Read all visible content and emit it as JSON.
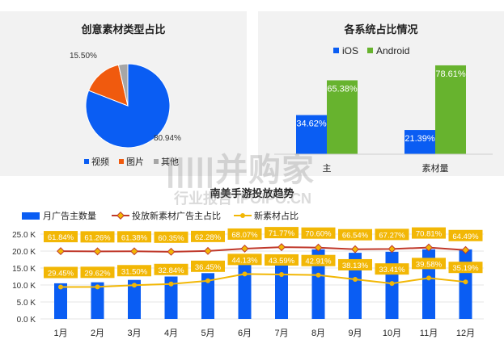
{
  "colors": {
    "blue": "#0a5df3",
    "orange": "#f05a0e",
    "gray": "#a6a6a6",
    "green": "#67b32e",
    "darkred": "#c0392b",
    "gold": "#f2b705"
  },
  "watermark": {
    "main": "|||||并购家",
    "sub": "行业报告 IPOIPO.CN"
  },
  "chart_data": [
    {
      "type": "pie",
      "title": "创意素材类型占比",
      "slices": [
        {
          "name": "视频",
          "value": 80.94,
          "label": "80.94%"
        },
        {
          "name": "图片",
          "value": 15.5,
          "label": "15.50%"
        },
        {
          "name": "其他",
          "value": 3.56,
          "label": ""
        }
      ],
      "legend": [
        "视频",
        "图片",
        "其他"
      ],
      "legend_position": "bottom"
    },
    {
      "type": "bar",
      "title": "各系统占比情况",
      "categories": [
        "广告主",
        "素材量"
      ],
      "category_labels": [
        "主",
        "素材量"
      ],
      "series": [
        {
          "name": "iOS",
          "values": [
            34.62,
            21.39
          ],
          "labels": [
            "34.62%",
            "21.39%"
          ]
        },
        {
          "name": "Android",
          "values": [
            65.38,
            78.61
          ],
          "labels": [
            "65.38%",
            "78.61%"
          ]
        }
      ],
      "legend_position": "top-left",
      "ylim": [
        0,
        100
      ]
    },
    {
      "type": "bar",
      "title": "南美手游投放趋势",
      "categories": [
        "1月",
        "2月",
        "3月",
        "4月",
        "5月",
        "6月",
        "7月",
        "8月",
        "9月",
        "10月",
        "11月",
        "12月"
      ],
      "ylim": [
        0,
        25000
      ],
      "yticks": [
        "0.0 K",
        "5.0 K",
        "10.0 K",
        "15.0 K",
        "20.0 K",
        "25.0 K"
      ],
      "series": [
        {
          "name": "月广告主数量",
          "kind": "bar",
          "values": [
            10500,
            10800,
            11500,
            12500,
            13500,
            16500,
            18000,
            20500,
            19500,
            19800,
            20500,
            20500
          ]
        },
        {
          "name": "投放新素材广告主占比",
          "kind": "line",
          "values": [
            61.84,
            61.26,
            61.38,
            60.35,
            62.28,
            68.07,
            71.77,
            70.6,
            66.54,
            67.27,
            70.81,
            64.49
          ],
          "labels": [
            "61.84%",
            "61.26%",
            "61.38%",
            "60.35%",
            "62.28%",
            "68.07%",
            "71.77%",
            "70.60%",
            "66.54%",
            "67.27%",
            "70.81%",
            "64.49%"
          ]
        },
        {
          "name": "新素材占比",
          "kind": "line",
          "values": [
            29.45,
            29.62,
            31.5,
            32.84,
            36.45,
            44.13,
            43.59,
            42.91,
            38.13,
            33.41,
            39.58,
            35.19
          ],
          "labels": [
            "29.45%",
            "29.62%",
            "31.50%",
            "32.84%",
            "36.45%",
            "44.13%",
            "43.59%",
            "42.91%",
            "38.13%",
            "33.41%",
            "39.58%",
            "35.19%"
          ]
        }
      ],
      "legend_position": "top"
    }
  ]
}
